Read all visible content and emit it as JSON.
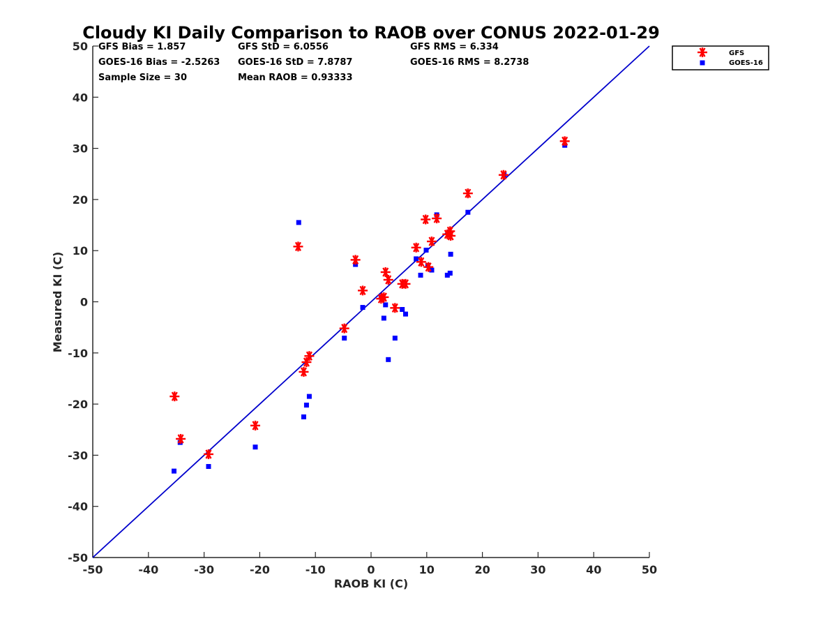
{
  "chart_data": {
    "type": "scatter",
    "title": "Cloudy KI Daily Comparison to RAOB over CONUS 2022-01-29",
    "xlabel": "RAOB KI (C)",
    "ylabel": "Measured KI (C)",
    "xlim": [
      -50,
      50
    ],
    "ylim": [
      -50,
      50
    ],
    "xticks": [
      -50,
      -40,
      -30,
      -20,
      -10,
      0,
      10,
      20,
      30,
      40,
      50
    ],
    "yticks": [
      -50,
      -40,
      -30,
      -20,
      -10,
      0,
      10,
      20,
      30,
      40,
      50
    ],
    "grid": false,
    "legend_position": "top-right outside",
    "reference_line": {
      "name": "1:1 line",
      "x": [
        -50,
        50
      ],
      "y": [
        -50,
        50
      ],
      "color": "#0000cc"
    },
    "stats": {
      "gfs_bias": "GFS Bias = 1.857",
      "gfs_std": "GFS StD = 6.0556",
      "gfs_rms": "GFS RMS = 6.334",
      "goes_bias": "GOES-16 Bias = -2.5263",
      "goes_std": "GOES-16 StD = 7.8787",
      "goes_rms": "GOES-16 RMS = 8.2738",
      "sample_size": "Sample Size = 30",
      "mean_raob": "Mean RAOB = 0.93333"
    },
    "series": [
      {
        "name": "GFS",
        "marker": "asterisk",
        "color": "#ff0000",
        "points": [
          [
            -35.3,
            -18.5
          ],
          [
            -34.2,
            -26.8
          ],
          [
            -29.2,
            -29.8
          ],
          [
            -20.8,
            -24.2
          ],
          [
            -13.1,
            10.8
          ],
          [
            -12.1,
            -13.7
          ],
          [
            -11.6,
            -11.8
          ],
          [
            -11.1,
            -10.6
          ],
          [
            -4.8,
            -5.2
          ],
          [
            -2.8,
            8.2
          ],
          [
            -1.5,
            2.2
          ],
          [
            1.8,
            0.6
          ],
          [
            2.3,
            0.9
          ],
          [
            2.6,
            5.8
          ],
          [
            3.1,
            4.3
          ],
          [
            4.3,
            -1.2
          ],
          [
            5.6,
            3.5
          ],
          [
            6.2,
            3.5
          ],
          [
            8.1,
            10.6
          ],
          [
            9.0,
            7.8
          ],
          [
            9.8,
            16.1
          ],
          [
            10.3,
            6.8
          ],
          [
            10.9,
            11.8
          ],
          [
            11.8,
            16.3
          ],
          [
            13.7,
            13.2
          ],
          [
            14.2,
            13.8
          ],
          [
            14.3,
            12.9
          ],
          [
            17.4,
            21.2
          ],
          [
            23.8,
            24.8
          ],
          [
            34.8,
            31.4
          ]
        ]
      },
      {
        "name": "GOES-16",
        "marker": "square",
        "color": "#0000ff",
        "points": [
          [
            -35.4,
            -33.1
          ],
          [
            -34.3,
            -27.5
          ],
          [
            -29.2,
            -32.2
          ],
          [
            -20.8,
            -28.4
          ],
          [
            -13.0,
            15.5
          ],
          [
            -12.1,
            -22.5
          ],
          [
            -11.6,
            -20.2
          ],
          [
            -11.1,
            -18.5
          ],
          [
            -4.8,
            -7.1
          ],
          [
            -2.8,
            7.3
          ],
          [
            -1.5,
            -1.1
          ],
          [
            1.8,
            0.9
          ],
          [
            2.3,
            -3.2
          ],
          [
            2.6,
            -0.6
          ],
          [
            3.1,
            -11.3
          ],
          [
            4.3,
            -7.1
          ],
          [
            5.6,
            -1.5
          ],
          [
            6.2,
            -2.4
          ],
          [
            8.1,
            8.4
          ],
          [
            8.9,
            5.2
          ],
          [
            9.9,
            10.1
          ],
          [
            10.2,
            7.1
          ],
          [
            10.9,
            6.2
          ],
          [
            11.8,
            17.0
          ],
          [
            13.7,
            5.2
          ],
          [
            14.2,
            5.6
          ],
          [
            14.3,
            9.3
          ],
          [
            17.4,
            17.5
          ],
          [
            23.9,
            24.9
          ],
          [
            34.8,
            30.6
          ]
        ]
      }
    ]
  }
}
